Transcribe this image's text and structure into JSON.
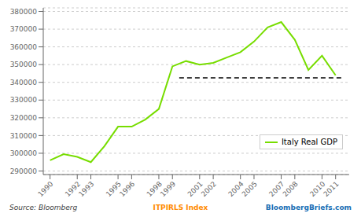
{
  "chart_data": {
    "type": "line",
    "x": [
      1990,
      1991,
      1992,
      1993,
      1994,
      1995,
      1996,
      1997,
      1998,
      1999,
      2000,
      2001,
      2002,
      2003,
      2004,
      2005,
      2006,
      2007,
      2008,
      2009,
      2010,
      2011
    ],
    "series": [
      {
        "name": "Italy Real GDP",
        "color": "#77dd00",
        "values": [
          296000,
          299500,
          298000,
          295000,
          304000,
          315000,
          315000,
          319000,
          325000,
          349000,
          352000,
          350000,
          351000,
          354000,
          357000,
          363000,
          371000,
          374000,
          364000,
          347000,
          355000,
          344000
        ]
      }
    ],
    "xlim": [
      1989.5,
      2012.0
    ],
    "xticks": [
      1990,
      1992,
      1993,
      1995,
      1996,
      1998,
      1999,
      2001,
      2002,
      2004,
      2005,
      2007,
      2008,
      2010,
      2011
    ],
    "ylim": [
      288000,
      382000
    ],
    "yticks": [
      290000,
      300000,
      310000,
      320000,
      330000,
      340000,
      350000,
      360000,
      370000,
      380000
    ],
    "grid": true,
    "legend": "lower right",
    "reference_lines": [
      {
        "y": 342500,
        "x": [
          1999.5,
          2011.5
        ],
        "color": "black",
        "line_style": "dashed"
      }
    ],
    "annotations": [
      {
        "text": "Source: Bloomberg",
        "color": "#404040"
      },
      {
        "text": "ITPIRLS Index",
        "color": "#ff8c00"
      },
      {
        "text": "BloombergBriefs.com",
        "color": "#1a6fb5"
      }
    ]
  }
}
